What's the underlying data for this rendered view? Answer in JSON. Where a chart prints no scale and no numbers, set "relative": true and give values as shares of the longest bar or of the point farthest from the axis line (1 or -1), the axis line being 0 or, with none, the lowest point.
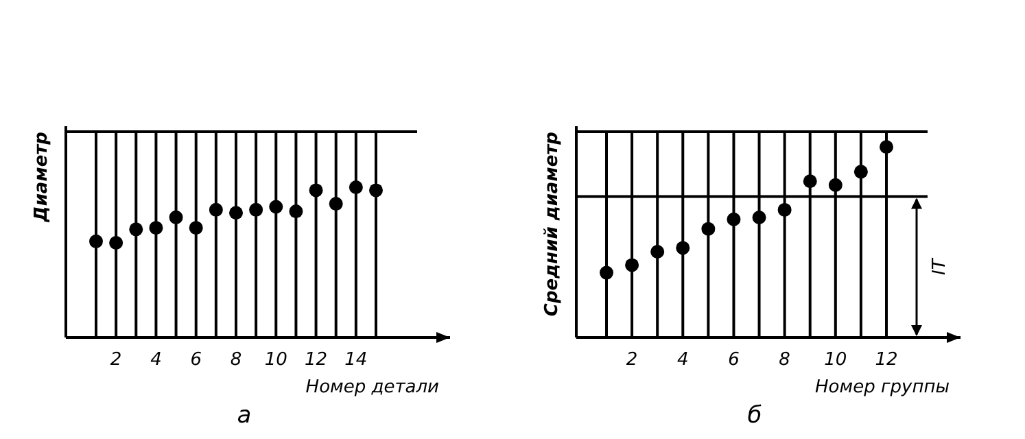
{
  "chart_data": [
    {
      "type": "scatter",
      "relative": true,
      "ylabel": "Диаметр",
      "xlabel": "Номер детали",
      "categories": [
        null,
        "2",
        null,
        "4",
        null,
        "6",
        null,
        "8",
        null,
        "10",
        null,
        "12",
        null,
        "14",
        null
      ],
      "values": [
        0.64,
        0.63,
        0.72,
        0.73,
        0.8,
        0.73,
        0.85,
        0.83,
        0.85,
        0.87,
        0.84,
        0.98,
        0.89,
        1,
        0.98
      ],
      "color": "#000000",
      "marker": "circle",
      "grid": "x",
      "ref_lines": [
        {
          "axis": "y",
          "value": 1.37,
          "color": "#000000"
        }
      ],
      "annotations": [
        "а"
      ]
    },
    {
      "type": "scatter",
      "relative": true,
      "ylabel": "Средний диаметр",
      "xlabel": "Номер группы",
      "categories": [
        null,
        "2",
        null,
        "4",
        null,
        "6",
        null,
        "8",
        null,
        "10",
        null,
        "12"
      ],
      "values": [
        0.34,
        0.38,
        0.45,
        0.47,
        0.57,
        0.62,
        0.63,
        0.67,
        0.82,
        0.8,
        0.87,
        1
      ],
      "color": "#000000",
      "marker": "circle",
      "grid": "x",
      "ref_lines": [
        {
          "axis": "y",
          "value": 1.08,
          "color": "#000000"
        },
        {
          "axis": "y",
          "value": 0.74,
          "color": "#000000",
          "label": "IT"
        }
      ],
      "annotations": [
        "б"
      ]
    }
  ]
}
